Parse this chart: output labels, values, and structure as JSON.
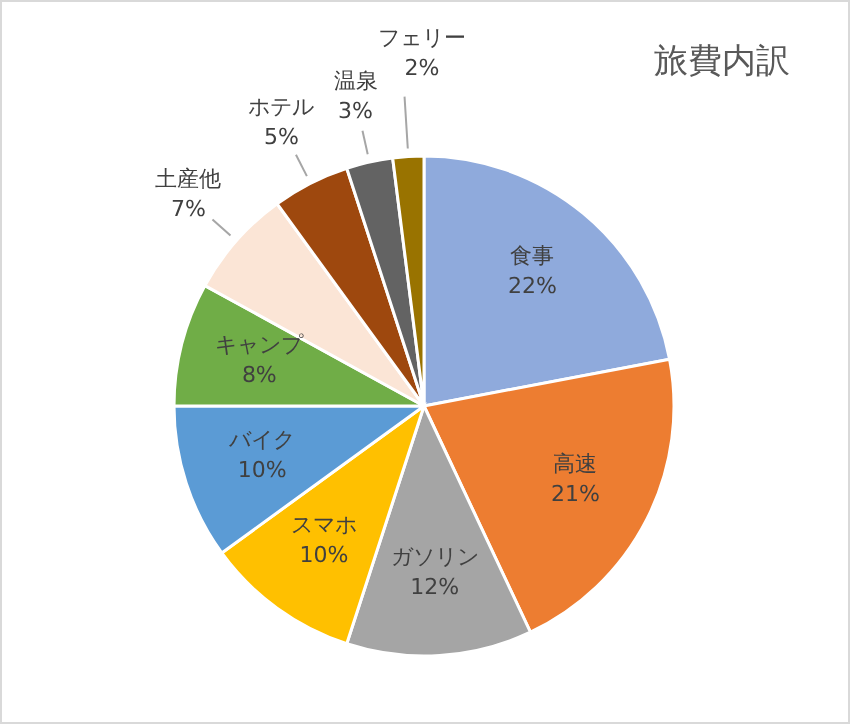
{
  "chart_data": {
    "type": "pie",
    "title": "旅費内訳",
    "categories": [
      "食事",
      "高速",
      "ガソリン",
      "スマホ",
      "バイク",
      "キャンプ",
      "土産他",
      "ホテル",
      "温泉",
      "フェリー"
    ],
    "values": [
      22,
      21,
      12,
      10,
      10,
      8,
      7,
      5,
      3,
      2
    ],
    "colors": [
      "#8faadc",
      "#ed7d31",
      "#a5a5a5",
      "#ffc000",
      "#5b9bd5",
      "#70ad47",
      "#fbe5d6",
      "#9e480e",
      "#636363",
      "#997300"
    ],
    "value_labels": [
      "22%",
      "21%",
      "12%",
      "10%",
      "10%",
      "8%",
      "7%",
      "5%",
      "3%",
      "2%"
    ]
  }
}
